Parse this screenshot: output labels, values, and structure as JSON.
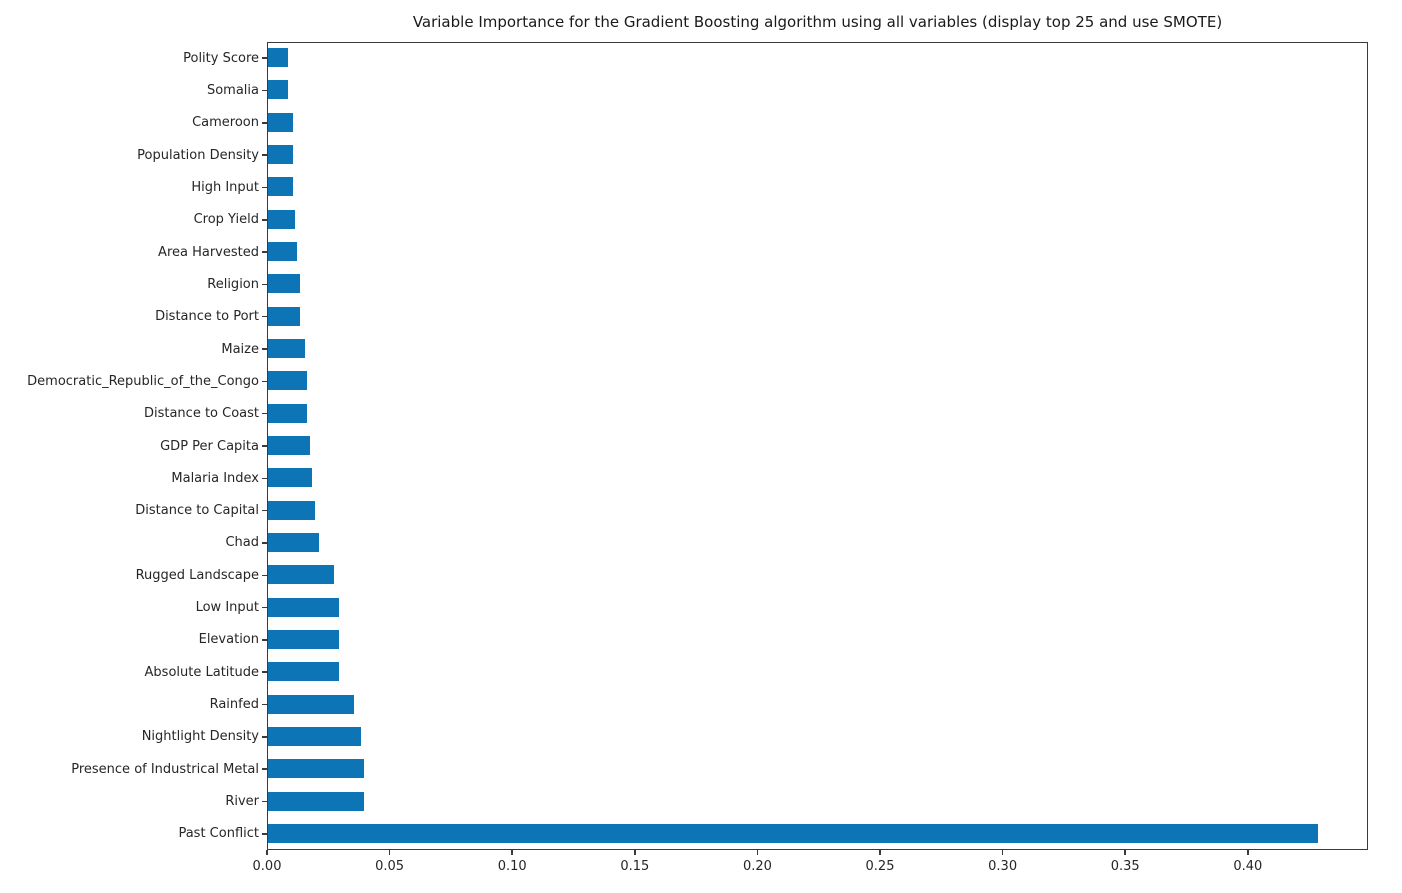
{
  "chart_data": {
    "type": "bar",
    "orientation": "horizontal",
    "title": "Variable Importance for the Gradient Boosting algorithm using all variables (display top 25 and use SMOTE)",
    "categories_top_to_bottom": [
      "Polity Score",
      "Somalia",
      "Cameroon",
      "Population Density",
      "High Input",
      "Crop Yield",
      "Area Harvested",
      "Religion",
      "Distance to Port",
      "Maize",
      "Democratic_Republic_of_the_Congo",
      "Distance to Coast",
      "GDP Per Capita",
      "Malaria Index",
      "Distance to Capital",
      "Chad",
      "Rugged Landscape",
      "Low Input",
      "Elevation",
      "Absolute Latitude",
      "Rainfed",
      "Nightlight Density",
      "Presence of Industrical Metal",
      "River",
      "Past Conflict"
    ],
    "values": [
      0.008,
      0.008,
      0.01,
      0.01,
      0.01,
      0.011,
      0.012,
      0.013,
      0.013,
      0.015,
      0.016,
      0.016,
      0.017,
      0.018,
      0.019,
      0.021,
      0.027,
      0.029,
      0.029,
      0.029,
      0.035,
      0.038,
      0.039,
      0.039,
      0.428
    ],
    "xlabel": "",
    "ylabel": "",
    "xlim": [
      0,
      0.449
    ],
    "x_tick_labels": [
      "0.00",
      "0.05",
      "0.10",
      "0.15",
      "0.20",
      "0.25",
      "0.30",
      "0.35",
      "0.40"
    ],
    "x_tick_values": [
      0.0,
      0.05,
      0.1,
      0.15,
      0.2,
      0.25,
      0.3,
      0.35,
      0.4
    ],
    "bar_color": "#0d75b6",
    "spine_color": "#3a3a3a",
    "grid": false,
    "legend": "none"
  }
}
